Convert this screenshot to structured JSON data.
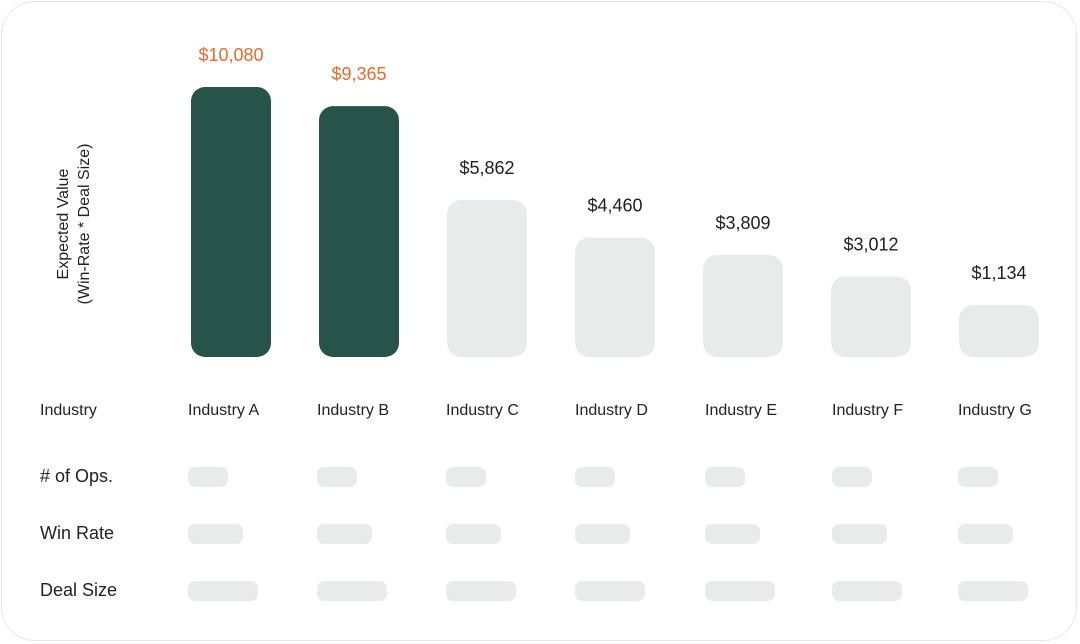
{
  "chart_data": {
    "type": "bar",
    "ylabel_lines": [
      "Expected Value",
      "(Win-Rate * Deal Size)"
    ],
    "categories": [
      "Industry A",
      "Industry B",
      "Industry C",
      "Industry D",
      "Industry E",
      "Industry F",
      "Industry G"
    ],
    "values": [
      10080,
      9365,
      5862,
      4460,
      3809,
      3012,
      1134
    ],
    "value_labels": [
      "$10,080",
      "$9,365",
      "$5,862",
      "$4,460",
      "$3,809",
      "$3,012",
      "$1,134"
    ],
    "highlighted": [
      true,
      true,
      false,
      false,
      false,
      false,
      false
    ],
    "grid": false,
    "colors": {
      "highlight_bar": "#26544a",
      "highlight_label": "#e86a2c",
      "muted_bar": "#e9ebeb",
      "muted_label": "#1f1f1f"
    }
  },
  "table": {
    "header_label": "Industry",
    "rows": [
      "# of Ops.",
      "Win Rate",
      "Deal Size"
    ]
  }
}
